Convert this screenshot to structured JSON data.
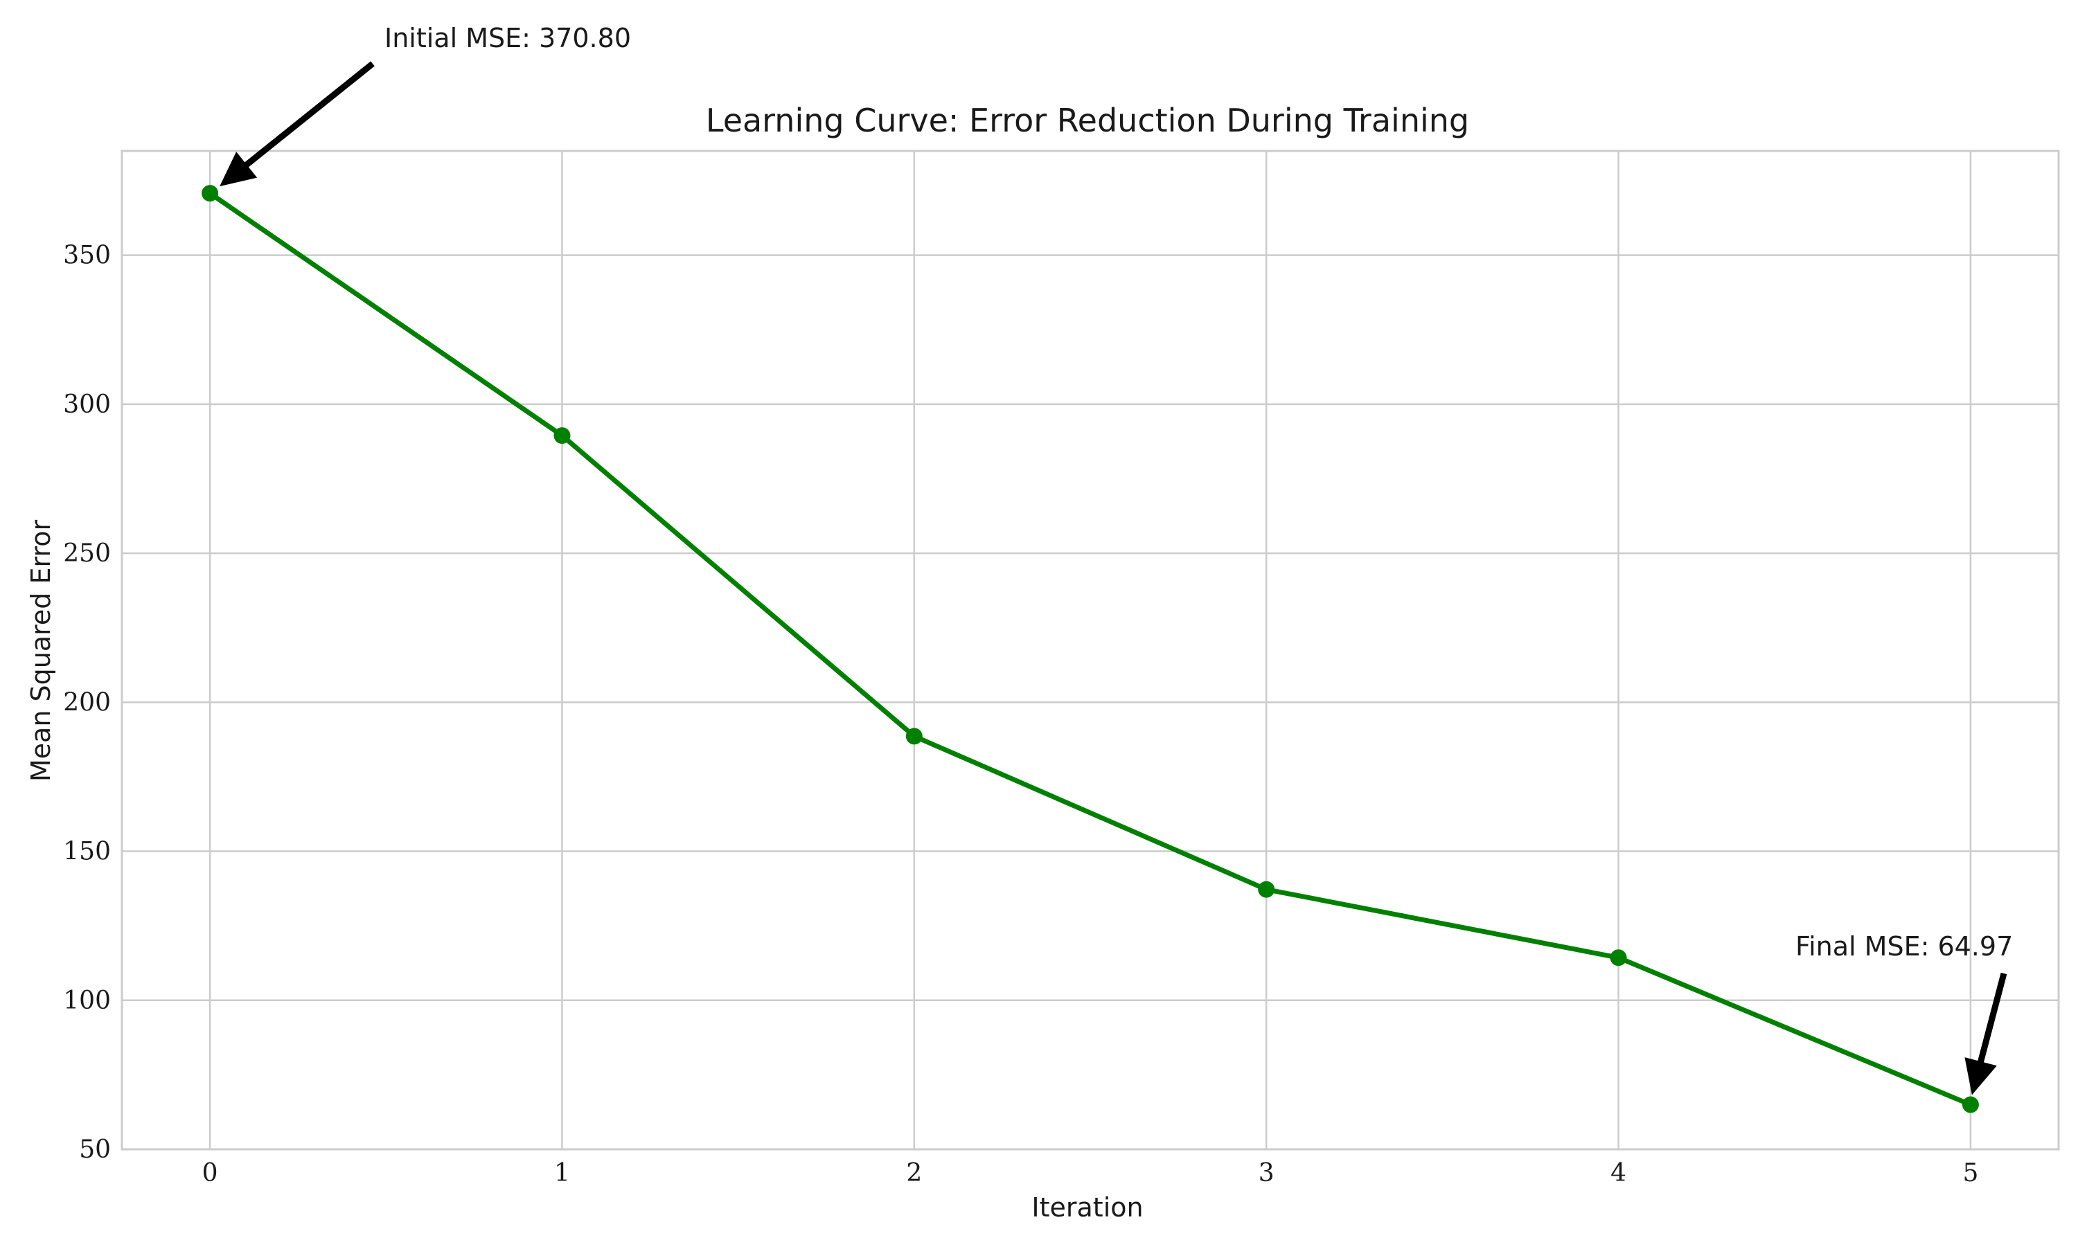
{
  "chart_data": {
    "type": "line",
    "title": "Learning Curve: Error Reduction During Training",
    "xlabel": "Iteration",
    "ylabel": "Mean Squared Error",
    "x": [
      0,
      1,
      2,
      3,
      4,
      5
    ],
    "series": [
      {
        "values": [
          370.8,
          289.5,
          188.6,
          137.2,
          114.3,
          64.97
        ]
      }
    ],
    "xlim": [
      -0.25,
      5.25
    ],
    "ylim": [
      50,
      385
    ],
    "xticks": [
      0,
      1,
      2,
      3,
      4,
      5
    ],
    "yticks": [
      50,
      100,
      150,
      200,
      250,
      300,
      350
    ],
    "grid": true,
    "line_color": "#008000",
    "grid_color": "#cccccc",
    "annotations": [
      {
        "text": "Initial MSE: 370.80",
        "x": 0,
        "y": 370.8
      },
      {
        "text": "Final MSE: 64.97",
        "x": 5,
        "y": 64.97
      }
    ]
  }
}
